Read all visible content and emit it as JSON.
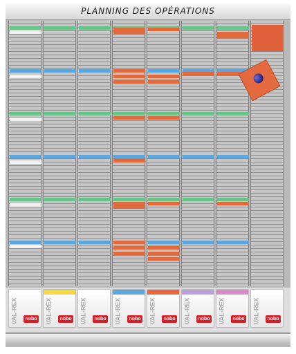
{
  "board": {
    "title": "PLANNING DES OPÉRATIONS",
    "brand_text": "VAL-REX",
    "logo_text": "nobo"
  },
  "colors": {
    "board_gray": "#b9b9b9",
    "slot_gray": "#c6c6c6",
    "green": "#68c48a",
    "blue": "#5aa6dd",
    "orange": "#e06a3c",
    "white": "#f1f1f1",
    "nobo_red": "#d51e25",
    "magnet_blue": "#2a2a9a"
  },
  "pocket_colors": [
    "#ffffff",
    "#f3d743",
    "#ffffff",
    "#5aa6dd",
    "#e8663c",
    "#b9a0d8",
    "#d88ac8",
    "#ffffff"
  ],
  "icons": {
    "pin": "magnet-pin-icon"
  }
}
